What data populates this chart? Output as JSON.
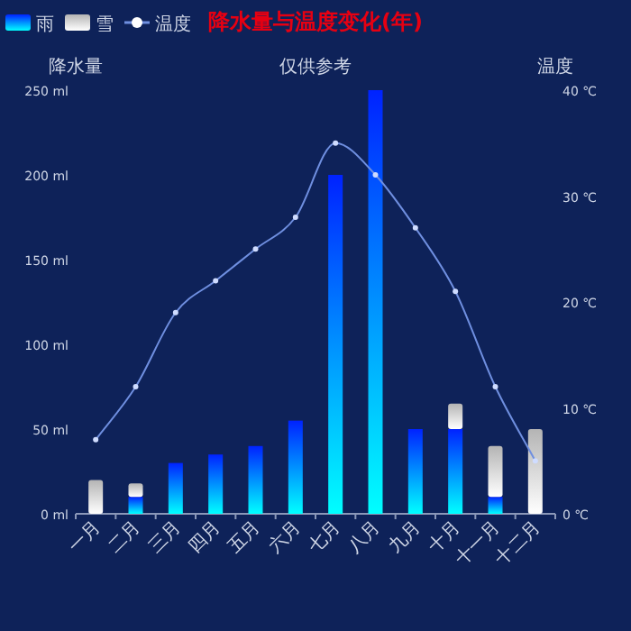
{
  "chart_data": {
    "type": "bar",
    "title": "降水量与温度变化(年)",
    "ylabel": "降水量",
    "y2label": "温度",
    "annotations": [
      "仅供参考"
    ],
    "categories": [
      "一月",
      "二月",
      "三月",
      "四月",
      "五月",
      "六月",
      "七月",
      "八月",
      "九月",
      "十月",
      "十一月",
      "十二月"
    ],
    "stacked": true,
    "series": [
      {
        "name": "雨",
        "color": "#0022ff",
        "values": [
          0,
          10,
          30,
          35,
          40,
          55,
          200,
          250,
          50,
          50,
          10,
          0
        ]
      },
      {
        "name": "雪",
        "color": "#b4b4b4",
        "values": [
          20,
          8,
          0,
          0,
          0,
          0,
          0,
          0,
          0,
          15,
          30,
          50
        ]
      },
      {
        "name": "温度",
        "type": "line",
        "axis": "y2",
        "color": "#6f8fe0",
        "marker": "circle",
        "values": [
          7,
          12,
          19,
          22,
          25,
          28,
          35,
          32,
          27,
          21,
          12,
          5
        ]
      }
    ],
    "ylim": [
      0,
      250
    ],
    "yticks": [
      {
        "value": 0,
        "label": "0 ml"
      },
      {
        "value": 50,
        "label": "50 ml"
      },
      {
        "value": 100,
        "label": "100 ml"
      },
      {
        "value": 150,
        "label": "150 ml"
      },
      {
        "value": 200,
        "label": "200 ml"
      },
      {
        "value": 250,
        "label": "250 ml"
      }
    ],
    "y2lim": [
      0,
      40
    ],
    "y2ticks": [
      {
        "value": 0,
        "label": "0 ℃"
      },
      {
        "value": 10,
        "label": "10 ℃"
      },
      {
        "value": 20,
        "label": "20 ℃"
      },
      {
        "value": 30,
        "label": "30 ℃"
      },
      {
        "value": 40,
        "label": "40 ℃"
      }
    ],
    "grid": false,
    "legend": "top left"
  }
}
